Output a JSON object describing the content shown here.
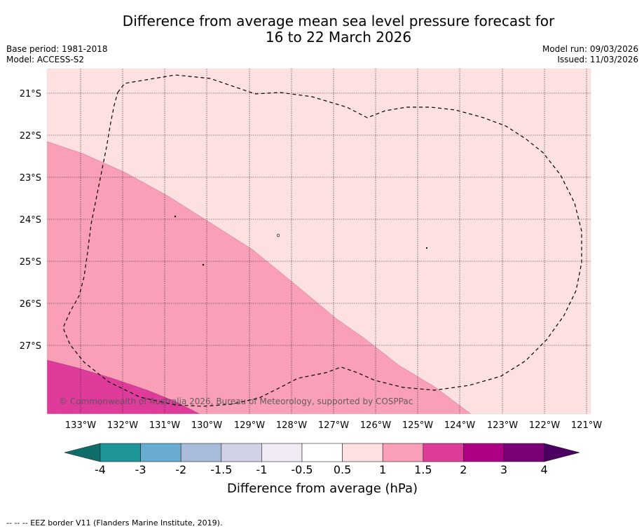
{
  "header": {
    "title_line1": "Difference from average mean sea level pressure forecast for",
    "title_line2": "16 to 22 March 2026",
    "base_period": "Base period: 1981-2018",
    "model": "Model: ACCESS-S2",
    "model_run": "Model run: 09/03/2026",
    "issued": "Issued: 11/03/2026"
  },
  "map": {
    "lat_labels": [
      "21°S",
      "22°S",
      "23°S",
      "24°S",
      "25°S",
      "26°S",
      "27°S"
    ],
    "lon_labels": [
      "133°W",
      "132°W",
      "131°W",
      "130°W",
      "129°W",
      "128°W",
      "127°W",
      "126°W",
      "125°W",
      "124°W",
      "123°W",
      "122°W",
      "121°W"
    ],
    "copyright": "© Commonwealth of Australia 2026, Bureau of Meteorology, supported by COSPPac"
  },
  "legend": {
    "tick_labels": [
      "-4",
      "-3",
      "-2",
      "-1.5",
      "-1",
      "-0.5",
      "0.5",
      "1",
      "1.5",
      "2",
      "3",
      "4"
    ],
    "colors": [
      "#0f6e6a",
      "#1e9599",
      "#69acd2",
      "#a7bcdb",
      "#d1d1e8",
      "#efeaf3",
      "#ffffff",
      "#fde0e0",
      "#f99fb8",
      "#de3b9b",
      "#ae0082",
      "#7a0077",
      "#4b0062"
    ],
    "label": "Difference from average (hPa)"
  },
  "footer": {
    "note": "--  --  -- EEZ border V11 (Flanders Marine Institute, 2019)."
  }
}
